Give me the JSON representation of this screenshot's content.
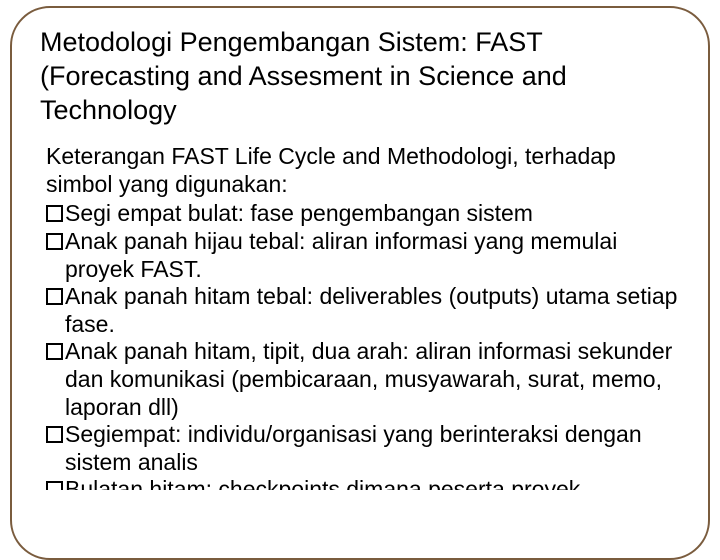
{
  "title": "Metodologi Pengembangan Sistem: FAST (Forecasting and Assesment  in Science and Technology",
  "intro": "Keterangan FAST Life Cycle and Methodologi, terhadap simbol yang digunakan:",
  "bullets": [
    {
      "text": "Segi empat bulat: fase pengembangan sistem"
    },
    {
      "text": "Anak panah hijau tebal: aliran informasi yang memulai proyek FAST."
    },
    {
      "text": "Anak panah hitam tebal: deliverables (outputs) utama setiap fase."
    },
    {
      "text": "Anak panah hitam, tipit, dua arah: aliran informasi sekunder dan komunikasi (pembicaraan, musyawarah, surat, memo, laporan dll)"
    },
    {
      "text": "Segiempat: individu/organisasi yang berinteraksi dengan sistem analis"
    },
    {
      "text": "Bulatan hitam: checkpoints dimana peserta proyek"
    }
  ],
  "colors": {
    "frame_border": "#7a5c3e",
    "text": "#000000",
    "background": "#ffffff"
  },
  "typography": {
    "title_fontsize": 27,
    "body_fontsize": 23,
    "font_family": "Arial"
  },
  "layout": {
    "frame_border_radius": 40,
    "frame_border_width": 2
  }
}
